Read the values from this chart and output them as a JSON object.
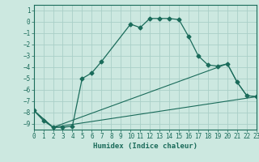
{
  "xlabel": "Humidex (Indice chaleur)",
  "bg_color": "#cce8e0",
  "grid_color": "#aacfc8",
  "line_color": "#1a6b5a",
  "xlim": [
    0,
    23
  ],
  "ylim": [
    -9.5,
    1.5
  ],
  "yticks": [
    1,
    0,
    -1,
    -2,
    -3,
    -4,
    -5,
    -6,
    -7,
    -8,
    -9
  ],
  "xticks": [
    0,
    1,
    2,
    3,
    4,
    5,
    6,
    7,
    8,
    9,
    10,
    11,
    12,
    13,
    14,
    15,
    16,
    17,
    18,
    19,
    20,
    21,
    22,
    23
  ],
  "series": [
    {
      "x": [
        0,
        1,
        2,
        3,
        4,
        5,
        6,
        7,
        10,
        11,
        12,
        13,
        14,
        15,
        16,
        17,
        18,
        19,
        20,
        21,
        22,
        23
      ],
      "y": [
        -7.8,
        -8.7,
        -9.3,
        -9.3,
        -9.2,
        -5.0,
        -4.5,
        -3.5,
        -0.2,
        -0.5,
        0.3,
        0.3,
        0.3,
        0.2,
        -1.3,
        -3.0,
        -3.8,
        -3.9,
        -3.7,
        -5.3,
        -6.5,
        -6.6
      ],
      "marker": "D",
      "markersize": 2.5
    },
    {
      "x": [
        0,
        2,
        23
      ],
      "y": [
        -7.8,
        -9.3,
        -6.6
      ]
    },
    {
      "x": [
        0,
        2,
        20,
        21,
        22,
        23
      ],
      "y": [
        -7.8,
        -9.3,
        -3.7,
        -5.3,
        -6.5,
        -6.6
      ]
    }
  ]
}
